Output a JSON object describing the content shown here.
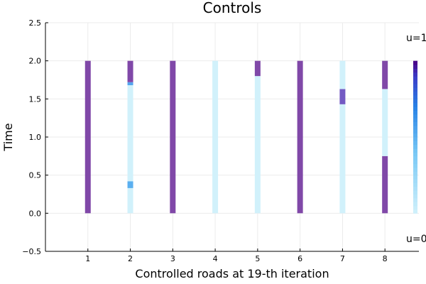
{
  "chart_data": {
    "type": "heatmap",
    "title": "Controls",
    "xlabel": "Controlled roads at 19-th iteration",
    "ylabel": "Time",
    "xlim": [
      0,
      8.8
    ],
    "ylim": [
      -0.5,
      2.5
    ],
    "x_ticks": [
      "1",
      "2",
      "3",
      "4",
      "5",
      "6",
      "7",
      "8"
    ],
    "y_ticks": [
      "−0.5",
      "0.0",
      "0.5",
      "1.0",
      "1.5",
      "2.0",
      "2.5"
    ],
    "y_tick_values": [
      -0.5,
      0.0,
      0.5,
      1.0,
      1.5,
      2.0,
      2.5
    ],
    "grid": true,
    "colorbar": {
      "max_label": "u=1",
      "min_label": "u=0",
      "low_color": "#d1f1fb",
      "high_color": "#4b0082"
    },
    "roads": [
      {
        "road": 1,
        "segments": [
          {
            "t0": 0.0,
            "t1": 2.0,
            "u": 1
          }
        ]
      },
      {
        "road": 2,
        "segments": [
          {
            "t0": 0.0,
            "t1": 0.33,
            "u": 0
          },
          {
            "t0": 0.33,
            "t1": 0.42,
            "u": 0.25
          },
          {
            "t0": 0.42,
            "t1": 1.68,
            "u": 0
          },
          {
            "t0": 1.68,
            "t1": 1.72,
            "u": 0.3
          },
          {
            "t0": 1.72,
            "t1": 2.0,
            "u": 1
          }
        ]
      },
      {
        "road": 3,
        "segments": [
          {
            "t0": 0.0,
            "t1": 2.0,
            "u": 1
          }
        ]
      },
      {
        "road": 4,
        "segments": [
          {
            "t0": 0.0,
            "t1": 2.0,
            "u": 0
          }
        ]
      },
      {
        "road": 5,
        "segments": [
          {
            "t0": 0.0,
            "t1": 1.8,
            "u": 0
          },
          {
            "t0": 1.8,
            "t1": 2.0,
            "u": 1
          }
        ]
      },
      {
        "road": 6,
        "segments": [
          {
            "t0": 0.0,
            "t1": 2.0,
            "u": 1
          }
        ]
      },
      {
        "road": 7,
        "segments": [
          {
            "t0": 0.0,
            "t1": 1.43,
            "u": 0
          },
          {
            "t0": 1.43,
            "t1": 1.63,
            "u": 0.75
          },
          {
            "t0": 1.63,
            "t1": 2.0,
            "u": 0
          }
        ]
      },
      {
        "road": 8,
        "segments": [
          {
            "t0": 0.0,
            "t1": 0.75,
            "u": 1
          },
          {
            "t0": 0.75,
            "t1": 1.63,
            "u": 0
          },
          {
            "t0": 1.63,
            "t1": 2.0,
            "u": 1
          }
        ]
      }
    ]
  }
}
